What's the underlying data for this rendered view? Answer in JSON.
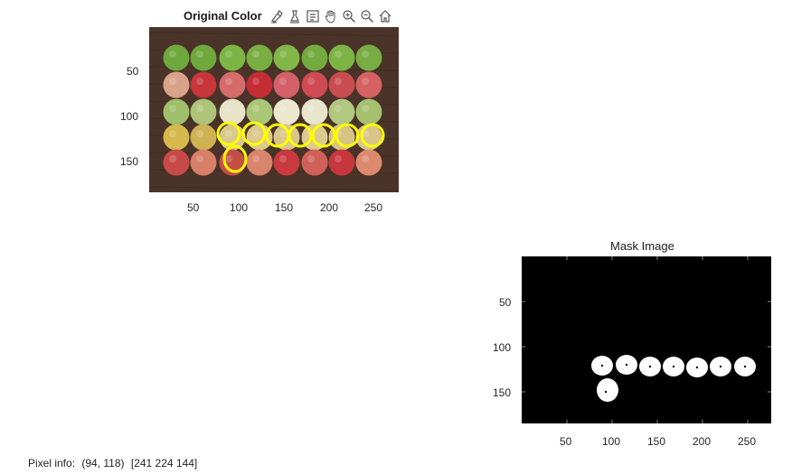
{
  "original": {
    "title": "Original Color",
    "y_ticks": [
      "50",
      "100",
      "150"
    ],
    "x_ticks": [
      "50",
      "100",
      "150",
      "200",
      "250"
    ]
  },
  "toolbar": {
    "icons": [
      "brush-icon",
      "data-cursor-icon",
      "legend-icon",
      "pan-hand-icon",
      "zoom-in-icon",
      "zoom-out-icon",
      "home-icon"
    ]
  },
  "mask": {
    "title": "Mask Image",
    "y_ticks": [
      "50",
      "100",
      "150"
    ],
    "x_ticks": [
      "50",
      "100",
      "150",
      "200",
      "250"
    ]
  },
  "pixel_info": {
    "label": "Pixel info:",
    "coords": "(94, 118)",
    "rgb": "[241 224 144]"
  },
  "colors": {
    "wood": "#4a3328",
    "green_apple": "#7fb04a",
    "red_apple": "#c23a3a",
    "pale_apple": "#d9c98a",
    "selection": "#ffff00",
    "mask_bg": "#000000",
    "mask_fg": "#ffffff"
  }
}
